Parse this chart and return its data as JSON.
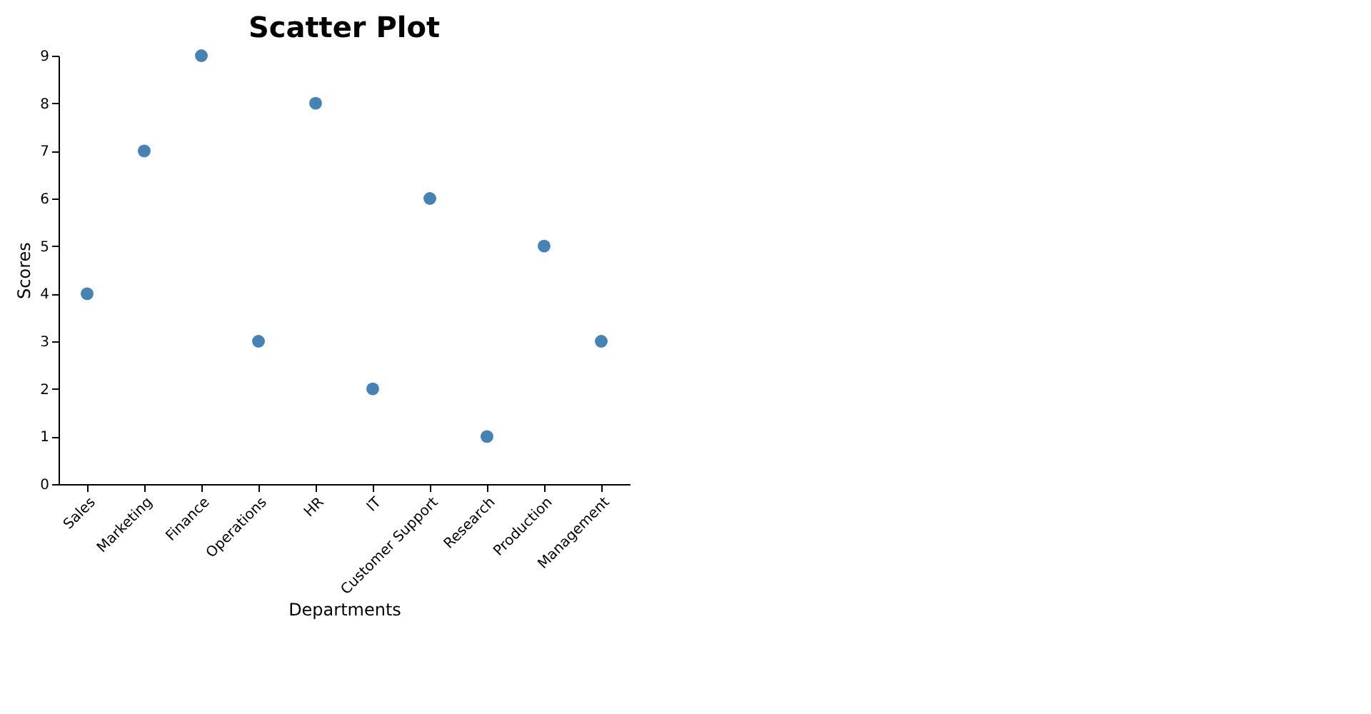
{
  "chart_data": {
    "type": "scatter",
    "title": "Scatter Plot",
    "xlabel": "Departments",
    "ylabel": "Scores",
    "categories": [
      "Sales",
      "Marketing",
      "Finance",
      "Operations",
      "HR",
      "IT",
      "Customer Support",
      "Research",
      "Production",
      "Management"
    ],
    "series": [
      {
        "color": "#4682b4",
        "values": [
          4,
          7,
          9,
          3,
          8,
          2,
          6,
          1,
          5,
          3
        ]
      }
    ],
    "ylim": [
      0,
      9
    ],
    "yticks": [
      0,
      1,
      2,
      3,
      4,
      5,
      6,
      7,
      8,
      9
    ],
    "grid": false,
    "marker": "circle"
  }
}
